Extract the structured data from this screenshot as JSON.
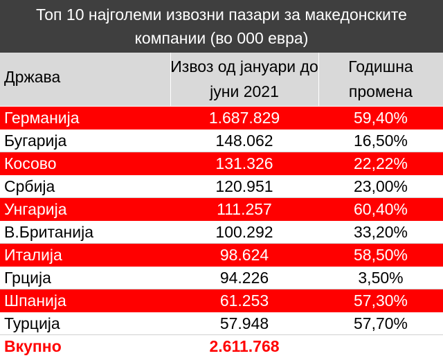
{
  "chart_data": {
    "type": "table",
    "title": "Топ 10 најголеми извозни пазари за македонските компании (во 000 евра)",
    "columns": [
      "Држава",
      "Извоз од јануари до јуни 2021",
      "Годишна промена"
    ],
    "rows": [
      {
        "country": "Германија",
        "value": "1.687.829",
        "change": "59,40%",
        "highlight": true
      },
      {
        "country": "Бугарија",
        "value": "148.062",
        "change": "16,50%",
        "highlight": false
      },
      {
        "country": "Косово",
        "value": "131.326",
        "change": "22,22%",
        "highlight": true
      },
      {
        "country": "Србија",
        "value": "120.951",
        "change": "23,00%",
        "highlight": false
      },
      {
        "country": "Унгарија",
        "value": "111.257",
        "change": "60,40%",
        "highlight": true
      },
      {
        "country": "В.Британија",
        "value": "100.292",
        "change": "33,20%",
        "highlight": false
      },
      {
        "country": "Италија",
        "value": "98.624",
        "change": "58,50%",
        "highlight": true
      },
      {
        "country": "Грција",
        "value": "94.226",
        "change": "3,50%",
        "highlight": false
      },
      {
        "country": "Шпанија",
        "value": "61.253",
        "change": "57,30%",
        "highlight": true
      },
      {
        "country": "Турција",
        "value": "57.948",
        "change": "57,70%",
        "highlight": false
      }
    ],
    "total": {
      "label": "Вкупно",
      "value": "2.611.768"
    }
  },
  "colors": {
    "title_bg": "#3f3f3f",
    "header_bg": "#d9d9d9",
    "highlight_row": "#ff0000",
    "total_text": "#ff0000"
  }
}
